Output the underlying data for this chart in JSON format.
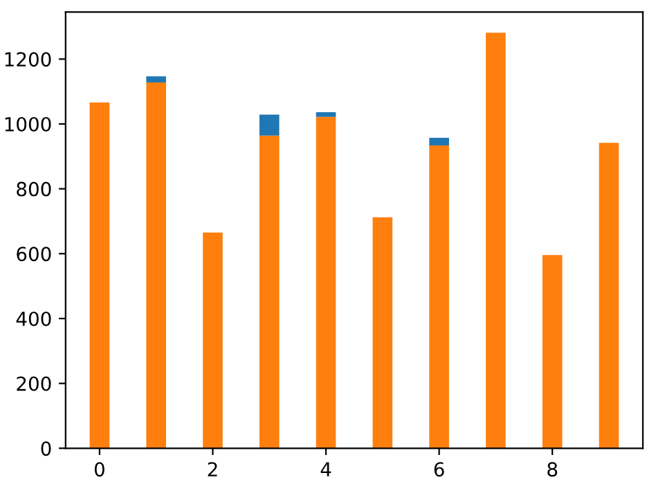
{
  "chart_data": {
    "type": "bar",
    "stacked": true,
    "x": [
      0,
      1,
      2,
      3,
      4,
      5,
      6,
      7,
      8,
      9
    ],
    "series": [
      {
        "color": "#ff7f0e",
        "values": [
          1066,
          1128,
          665,
          964,
          1022,
          712,
          934,
          1281,
          596,
          942
        ]
      },
      {
        "color": "#1f77b4",
        "values": [
          null,
          19,
          null,
          65,
          14,
          null,
          23,
          null,
          null,
          null
        ]
      }
    ],
    "xlim": [
      -0.6,
      9.6
    ],
    "xticks": [
      0,
      2,
      4,
      6,
      8
    ],
    "ylim": [
      0,
      1345
    ],
    "yticks": [
      0,
      200,
      400,
      600,
      800,
      1000,
      1200
    ],
    "grid": false,
    "legend": false
  }
}
